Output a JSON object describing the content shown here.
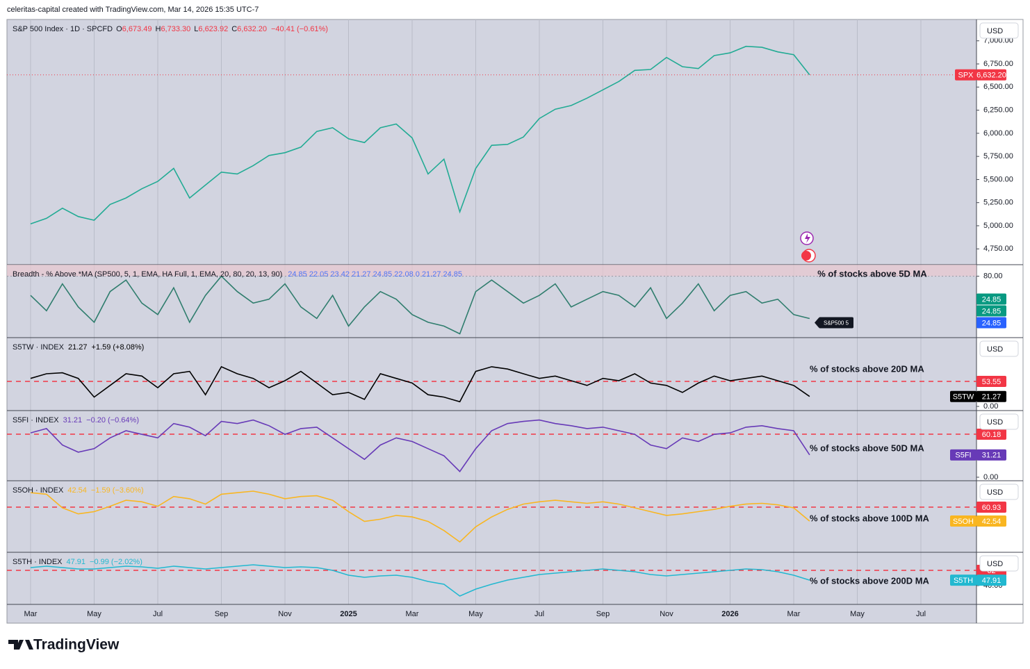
{
  "header": {
    "credit": "celeritas-capital created with TradingView.com, Mar 14, 2026 15:35 UTC-7"
  },
  "footer": {
    "logo": "TradingView"
  },
  "chart_data": [
    {
      "type": "line",
      "title": "S&P 500 Index · 1D · SPCFD",
      "ohlc": [
        {
          "key": "O",
          "value": "6,673.49"
        },
        {
          "key": "H",
          "value": "6,733.30"
        },
        {
          "key": "L",
          "value": "6,623.92"
        },
        {
          "key": "C",
          "value": "6,632.20"
        }
      ],
      "change": "−40.41 (−0.61%)",
      "currency": "USD",
      "last_line": true,
      "ylim": [
        4579,
        7231
      ],
      "yticks": [
        {
          "value": 4750,
          "label": "4,750.00"
        },
        {
          "value": 5000,
          "label": "5,000.00"
        },
        {
          "value": 5250,
          "label": "5,250.00"
        },
        {
          "value": 5500,
          "label": "5,500.00"
        },
        {
          "value": 5750,
          "label": "5,750.00"
        },
        {
          "value": 6000,
          "label": "6,000.00"
        },
        {
          "value": 6250,
          "label": "6,250.00"
        },
        {
          "value": 6500,
          "label": "6,500.00"
        },
        {
          "value": 6750,
          "label": "6,750.00"
        },
        {
          "value": 7000,
          "label": "7,000.00"
        }
      ],
      "series": [
        {
          "name": "SPX",
          "color": "#22ab94",
          "tag_color": "#f23645",
          "values": [
            5020,
            5080,
            5190,
            5100,
            5060,
            5230,
            5300,
            5400,
            5480,
            5620,
            5300,
            5440,
            5580,
            5560,
            5650,
            5760,
            5790,
            5850,
            6020,
            6060,
            5940,
            5900,
            6060,
            6100,
            5950,
            5560,
            5720,
            5150,
            5620,
            5870,
            5880,
            5960,
            6160,
            6260,
            6300,
            6380,
            6470,
            6560,
            6680,
            6690,
            6820,
            6720,
            6700,
            6840,
            6870,
            6940,
            6930,
            6880,
            6850,
            6632.2,
            null,
            null,
            null,
            null,
            null,
            null,
            null,
            null
          ],
          "value_labels": [
            null,
            null,
            null,
            null,
            null,
            null,
            null,
            null,
            null,
            null,
            null,
            null,
            null,
            null,
            null,
            null,
            null,
            null,
            null,
            null,
            null,
            null,
            null,
            null,
            null,
            null,
            null,
            null,
            null,
            null,
            null,
            null,
            null,
            null,
            null,
            null,
            null,
            null,
            null,
            null,
            null,
            null,
            null,
            null,
            null,
            null,
            null,
            null,
            null,
            "6,632.20",
            null,
            null,
            null,
            null,
            null,
            null,
            null,
            null
          ]
        }
      ]
    },
    {
      "type": "line",
      "title": "Breadth - % Above *MA (SP500, 5, 1, EMA, HA Full, 1, EMA, 20, 80, 20, 13, 90)",
      "legend_values": "24.85  22.05  23.42  21.27  24.85  22.08  0  21.27  24.85",
      "annotation": "% of stocks above 5D MA",
      "ylim": [
        0,
        95
      ],
      "yticks": [
        {
          "value": 80,
          "label": "80.00"
        }
      ],
      "series": [
        {
          "name": "S&P500 5",
          "color": "#2f7d6d",
          "tag_colors": [
            "#089981",
            "#089981",
            "#2962ff"
          ],
          "values": [
            55,
            35,
            70,
            40,
            20,
            60,
            75,
            45,
            30,
            65,
            20,
            55,
            80,
            60,
            45,
            50,
            70,
            40,
            25,
            55,
            15,
            40,
            60,
            50,
            30,
            20,
            15,
            5,
            60,
            75,
            60,
            45,
            55,
            70,
            40,
            50,
            60,
            55,
            40,
            65,
            25,
            45,
            70,
            35,
            55,
            60,
            45,
            50,
            30,
            24.85,
            null,
            null,
            null,
            null,
            null,
            null,
            null,
            null
          ]
        }
      ]
    },
    {
      "type": "line",
      "title": "S5TW · INDEX",
      "change": "+1.59 (+8.08%)",
      "currency": "USD",
      "annotation": "% of stocks above 20D MA",
      "ylim": [
        -8.9,
        147.3
      ],
      "yticks": [
        {
          "value": 0,
          "label": "0.00"
        }
      ],
      "levels": [
        53.55
      ],
      "series": [
        {
          "name": "S5TW",
          "color": "#000000",
          "values": [
            60,
            70,
            72,
            60,
            20,
            45,
            70,
            65,
            40,
            70,
            75,
            25,
            85,
            70,
            60,
            40,
            55,
            75,
            50,
            25,
            30,
            15,
            70,
            60,
            50,
            25,
            20,
            10,
            75,
            85,
            80,
            70,
            60,
            65,
            55,
            45,
            60,
            55,
            70,
            50,
            45,
            30,
            50,
            65,
            55,
            60,
            65,
            55,
            45,
            21.27,
            null,
            null,
            null,
            null,
            null,
            null,
            null,
            null
          ]
        }
      ]
    },
    {
      "type": "line",
      "title": "S5FI · INDEX",
      "change": "−0.20 (−0.64%)",
      "currency": "USD",
      "annotation": "% of stocks above 50D MA",
      "ylim": [
        -4.9,
        93.2
      ],
      "yticks": [
        {
          "value": 0,
          "label": "0.00"
        }
      ],
      "levels": [
        60.18
      ],
      "series": [
        {
          "name": "S5FI",
          "color": "#673ab7",
          "values": [
            62,
            68,
            45,
            35,
            40,
            55,
            65,
            60,
            55,
            75,
            70,
            58,
            78,
            75,
            80,
            72,
            60,
            68,
            70,
            55,
            40,
            25,
            45,
            55,
            50,
            40,
            30,
            8,
            40,
            65,
            75,
            78,
            80,
            75,
            72,
            68,
            70,
            65,
            60,
            45,
            40,
            55,
            50,
            60,
            62,
            70,
            72,
            68,
            65,
            31.21,
            null,
            null,
            null,
            null,
            null,
            null,
            null,
            null
          ]
        }
      ]
    },
    {
      "type": "line",
      "title": "S5OH · INDEX",
      "change": "−1.59 (−3.60%)",
      "currency": "USD",
      "annotation": "% of stocks above 100D MA",
      "ylim": [
        1.3,
        95.8
      ],
      "levels": [
        60.93
      ],
      "series": [
        {
          "name": "S5OH",
          "color": "#f9b621",
          "values": [
            80,
            78,
            60,
            52,
            55,
            62,
            70,
            68,
            62,
            75,
            72,
            65,
            78,
            80,
            82,
            78,
            72,
            75,
            76,
            70,
            55,
            42,
            45,
            50,
            48,
            42,
            30,
            15,
            35,
            48,
            58,
            65,
            68,
            70,
            68,
            66,
            68,
            65,
            60,
            55,
            50,
            52,
            55,
            58,
            62,
            65,
            66,
            64,
            60,
            42.54,
            null,
            null,
            null,
            null,
            null,
            null,
            null,
            null
          ]
        }
      ]
    },
    {
      "type": "line",
      "title": "S5TH · INDEX",
      "change": "−0.99 (−2.02%)",
      "currency": "USD",
      "annotation": "% of stocks above 200D MA",
      "ylim": [
        13,
        88
      ],
      "yticks": [
        {
          "value": 40,
          "label": "40.00"
        }
      ],
      "levels": [
        62
      ],
      "categories": [
        "Mar",
        null,
        null,
        null,
        "May",
        null,
        null,
        null,
        "Jul",
        null,
        null,
        null,
        "Sep",
        null,
        null,
        null,
        "Nov",
        null,
        null,
        null,
        "2025",
        null,
        null,
        null,
        "Mar",
        null,
        null,
        null,
        "May",
        null,
        null,
        null,
        "Jul",
        null,
        null,
        null,
        "Sep",
        null,
        null,
        null,
        "Nov",
        null,
        null,
        null,
        "2026",
        null,
        null,
        null,
        "Mar",
        null,
        null,
        null,
        "May",
        null,
        null,
        null,
        "Jul",
        null
      ],
      "series": [
        {
          "name": "S5TH",
          "color": "#22b8d0",
          "values": [
            66,
            68,
            66,
            64,
            64,
            66,
            68,
            67,
            65,
            68,
            66,
            64,
            66,
            68,
            70,
            68,
            66,
            67,
            66,
            62,
            55,
            52,
            54,
            55,
            52,
            46,
            42,
            25,
            35,
            42,
            48,
            52,
            56,
            58,
            60,
            62,
            64,
            62,
            60,
            56,
            54,
            56,
            58,
            60,
            62,
            64,
            63,
            60,
            55,
            47.91,
            null,
            null,
            null,
            null,
            null,
            null,
            null,
            null
          ]
        }
      ]
    }
  ]
}
